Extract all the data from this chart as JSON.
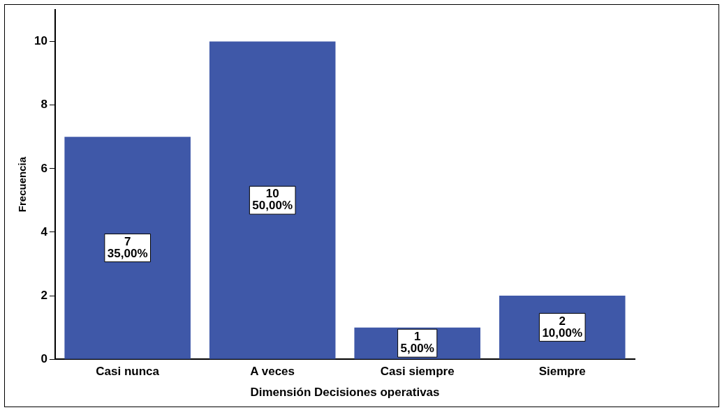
{
  "chart_data": {
    "type": "bar",
    "xlabel": "Dimensión Decisiones operativas",
    "ylabel": "Frecuencia",
    "categories": [
      "Casi nunca",
      "A veces",
      "Casi siempre",
      "Siempre"
    ],
    "series": [
      {
        "color": "#3f58a8",
        "values": [
          7,
          10,
          1,
          2
        ],
        "value_labels": [
          "7\n35,00%",
          "10\n50,00%",
          "1\n5,00%",
          "2\n10,00%"
        ]
      }
    ],
    "ylim": [
      0,
      11
    ],
    "yticks": [
      0,
      2,
      4,
      6,
      8,
      10
    ],
    "grid": false,
    "legend": false
  }
}
